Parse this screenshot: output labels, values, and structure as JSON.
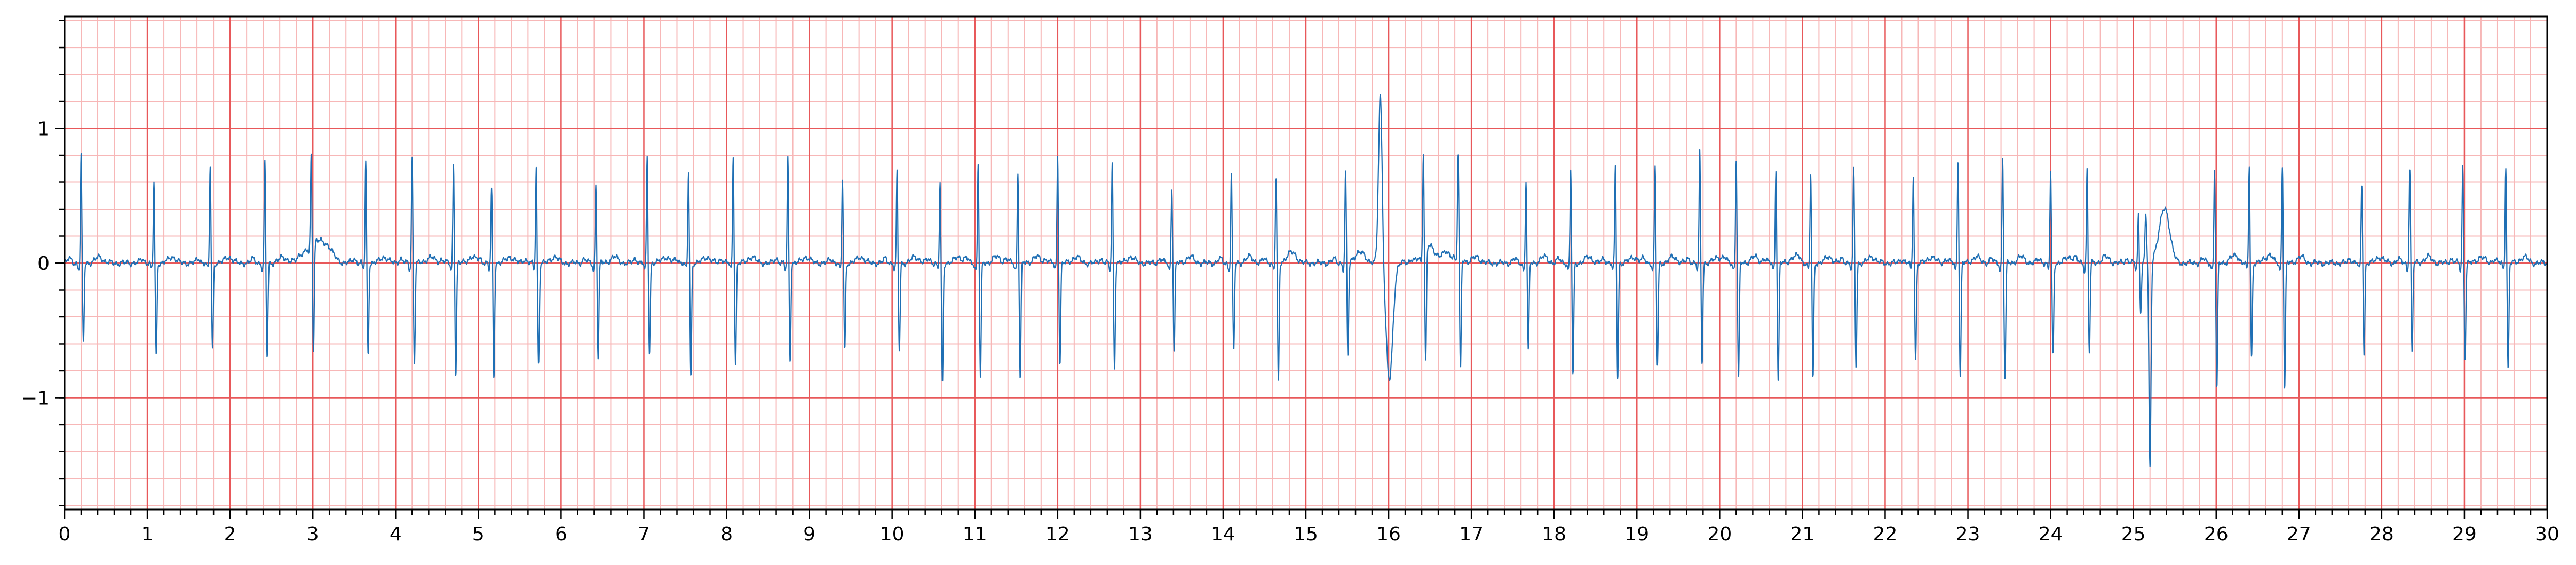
{
  "chart_data": {
    "type": "line",
    "title": "",
    "xlabel": "",
    "ylabel": "",
    "xlim": [
      0,
      30
    ],
    "ylim": [
      -1.83,
      1.83
    ],
    "x_ticks": [
      "0",
      "1",
      "2",
      "3",
      "4",
      "5",
      "6",
      "7",
      "8",
      "9",
      "10",
      "11",
      "12",
      "13",
      "14",
      "15",
      "16",
      "17",
      "18",
      "19",
      "20",
      "21",
      "22",
      "23",
      "24",
      "25",
      "26",
      "27",
      "28",
      "29",
      "30"
    ],
    "y_ticks": [
      "−1",
      "0",
      "1"
    ],
    "y_tick_values": [
      -1,
      0,
      1
    ],
    "grid": {
      "major_x": 1,
      "major_y": 1,
      "minor_x": 0.2,
      "minor_y": 0.2,
      "major_color": "#e8585a",
      "minor_color": "#f7b7b7"
    },
    "background": "#ffffff",
    "series": [
      {
        "color": "#1f6fb4",
        "beats": [
          [
            0.2,
            0.8,
            -0.6
          ],
          [
            1.08,
            0.6,
            -0.7
          ],
          [
            1.76,
            0.72,
            -0.65
          ],
          [
            2.42,
            0.75,
            -0.7
          ],
          [
            2.98,
            0.68,
            -0.8
          ],
          [
            3.64,
            0.75,
            -0.68
          ],
          [
            4.2,
            0.78,
            -0.75
          ],
          [
            4.7,
            0.75,
            -0.82
          ],
          [
            5.16,
            0.55,
            -0.85
          ],
          [
            5.7,
            0.72,
            -0.75
          ],
          [
            6.42,
            0.6,
            -0.7
          ],
          [
            7.04,
            0.8,
            -0.66
          ],
          [
            7.54,
            0.68,
            -0.85
          ],
          [
            8.08,
            0.8,
            -0.75
          ],
          [
            8.74,
            0.78,
            -0.73
          ],
          [
            9.4,
            0.63,
            -0.64
          ],
          [
            10.06,
            0.67,
            -0.66
          ],
          [
            10.58,
            0.6,
            -0.9
          ],
          [
            11.04,
            0.75,
            -0.86
          ],
          [
            11.52,
            0.68,
            -0.86
          ],
          [
            12.0,
            0.8,
            -0.75
          ],
          [
            12.66,
            0.75,
            -0.78
          ],
          [
            13.38,
            0.57,
            -0.65
          ],
          [
            14.1,
            0.66,
            -0.66
          ],
          [
            14.64,
            0.63,
            -0.9
          ],
          [
            15.48,
            0.68,
            -0.7
          ],
          [
            16.42,
            0.75,
            -0.84
          ],
          [
            16.84,
            0.75,
            -0.85
          ],
          [
            17.66,
            0.62,
            -0.66
          ],
          [
            18.2,
            0.7,
            -0.84
          ],
          [
            18.74,
            0.72,
            -0.86
          ],
          [
            19.22,
            0.72,
            -0.76
          ],
          [
            19.76,
            0.83,
            -0.74
          ],
          [
            20.2,
            0.77,
            -0.87
          ],
          [
            20.68,
            0.7,
            -0.89
          ],
          [
            21.1,
            0.67,
            -0.86
          ],
          [
            21.62,
            0.69,
            -0.78
          ],
          [
            22.34,
            0.66,
            -0.72
          ],
          [
            22.88,
            0.77,
            -0.85
          ],
          [
            23.42,
            0.78,
            -0.87
          ],
          [
            24.0,
            0.69,
            -0.68
          ],
          [
            24.44,
            0.7,
            -0.67
          ],
          [
            25.06,
            0.36,
            -0.36
          ],
          [
            25.98,
            0.7,
            -0.95
          ],
          [
            26.4,
            0.73,
            -0.7
          ],
          [
            26.8,
            0.74,
            -0.93
          ],
          [
            27.76,
            0.58,
            -0.68
          ],
          [
            28.34,
            0.7,
            -0.68
          ],
          [
            28.98,
            0.73,
            -0.7
          ],
          [
            29.5,
            0.72,
            -0.8
          ]
        ],
        "features": [
          {
            "kind": "wide_complex",
            "x": 15.9,
            "peak": 1.26,
            "trough": -0.87
          },
          {
            "kind": "deep_s",
            "x": 25.2,
            "peak": 0.36,
            "trough": -1.55
          },
          {
            "kind": "hump",
            "x": 25.38,
            "peak": 0.4
          },
          {
            "kind": "baseline_wander",
            "x": 3.05,
            "peak": 0.17
          }
        ]
      }
    ]
  }
}
